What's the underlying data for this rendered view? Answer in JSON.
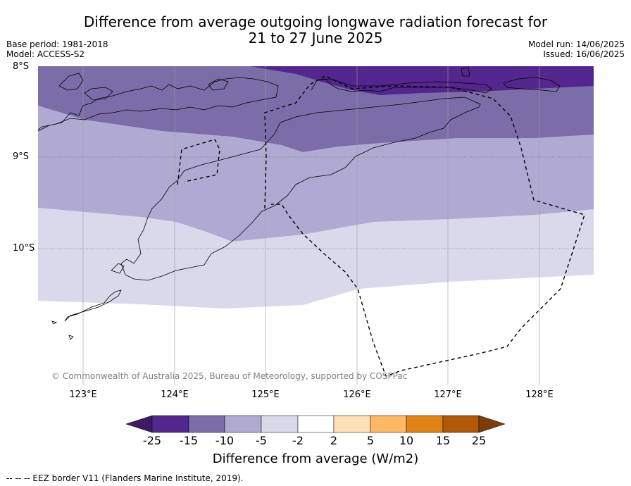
{
  "header": {
    "title_line1": "Difference from average outgoing longwave radiation forecast for",
    "title_line2": "21 to 27 June 2025",
    "base_period": "Base period: 1981-2018",
    "model": "Model: ACCESS-S2",
    "model_run": "Model run: 14/06/2025",
    "issued": "Issued: 16/06/2025"
  },
  "map": {
    "lat_labels": [
      "8°S",
      "9°S",
      "10°S"
    ],
    "lon_labels": [
      "123°E",
      "124°E",
      "125°E",
      "126°E",
      "127°E",
      "128°E"
    ],
    "copyright": "© Commonwealth of Australia 2025, Bureau of Meteorology, supported by COSPPac",
    "colors": {
      "band_minus25_minus15": "#54278f",
      "band_minus15_minus10": "#7b6ea8",
      "band_minus10_minus5": "#b0aad2",
      "band_minus5_minus2": "#d9d9eb",
      "band_neutral": "#ffffff"
    }
  },
  "colorbar": {
    "ticks": [
      "-25",
      "-15",
      "-10",
      "-5",
      "-2",
      "2",
      "5",
      "10",
      "15",
      "25"
    ],
    "colors": [
      "#3f1b66",
      "#54278f",
      "#7b6ea8",
      "#b0aad2",
      "#d9d9eb",
      "#ffffff",
      "#fee0b6",
      "#fdb863",
      "#e08214",
      "#b35806",
      "#7f3b08"
    ],
    "title": "Difference from average (W/m2)"
  },
  "footer": {
    "eez_note": "--  --  -- EEZ border V11 (Flanders Marine Institute, 2019)."
  }
}
